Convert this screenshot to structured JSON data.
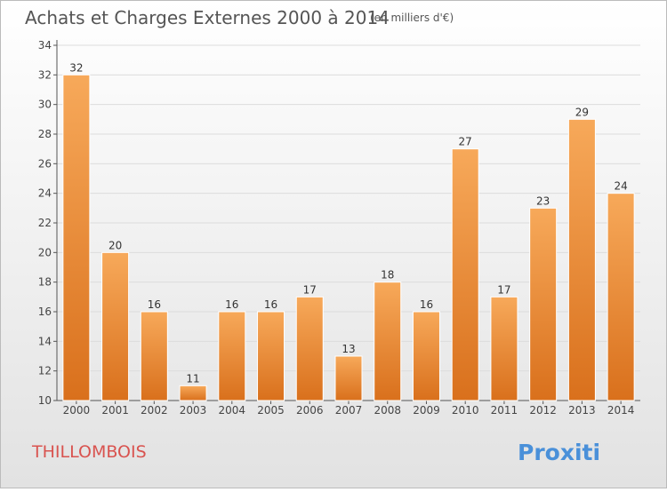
{
  "chart_data": {
    "type": "bar",
    "title": "Achats et Charges Externes 2000 à 2014",
    "subtitle": "(en milliers d'€)",
    "categories": [
      "2000",
      "2001",
      "2002",
      "2003",
      "2004",
      "2005",
      "2006",
      "2007",
      "2008",
      "2009",
      "2010",
      "2011",
      "2012",
      "2013",
      "2014"
    ],
    "values": [
      32,
      20,
      16,
      11,
      16,
      16,
      17,
      13,
      18,
      16,
      27,
      17,
      23,
      29,
      24
    ],
    "ylim": [
      10,
      34
    ],
    "yticks": [
      10,
      12,
      14,
      16,
      18,
      20,
      22,
      24,
      26,
      28,
      30,
      32,
      34
    ],
    "grid": true,
    "xlabel": "",
    "ylabel": ""
  },
  "footer": {
    "commune": "THILLOMBOIS",
    "brand": "Proxiti"
  },
  "colors": {
    "bar_light": "#f7a95a",
    "bar_dark": "#d9701c",
    "title": "#555555",
    "commune": "#d9534f",
    "grid": "#dcdcdc"
  }
}
